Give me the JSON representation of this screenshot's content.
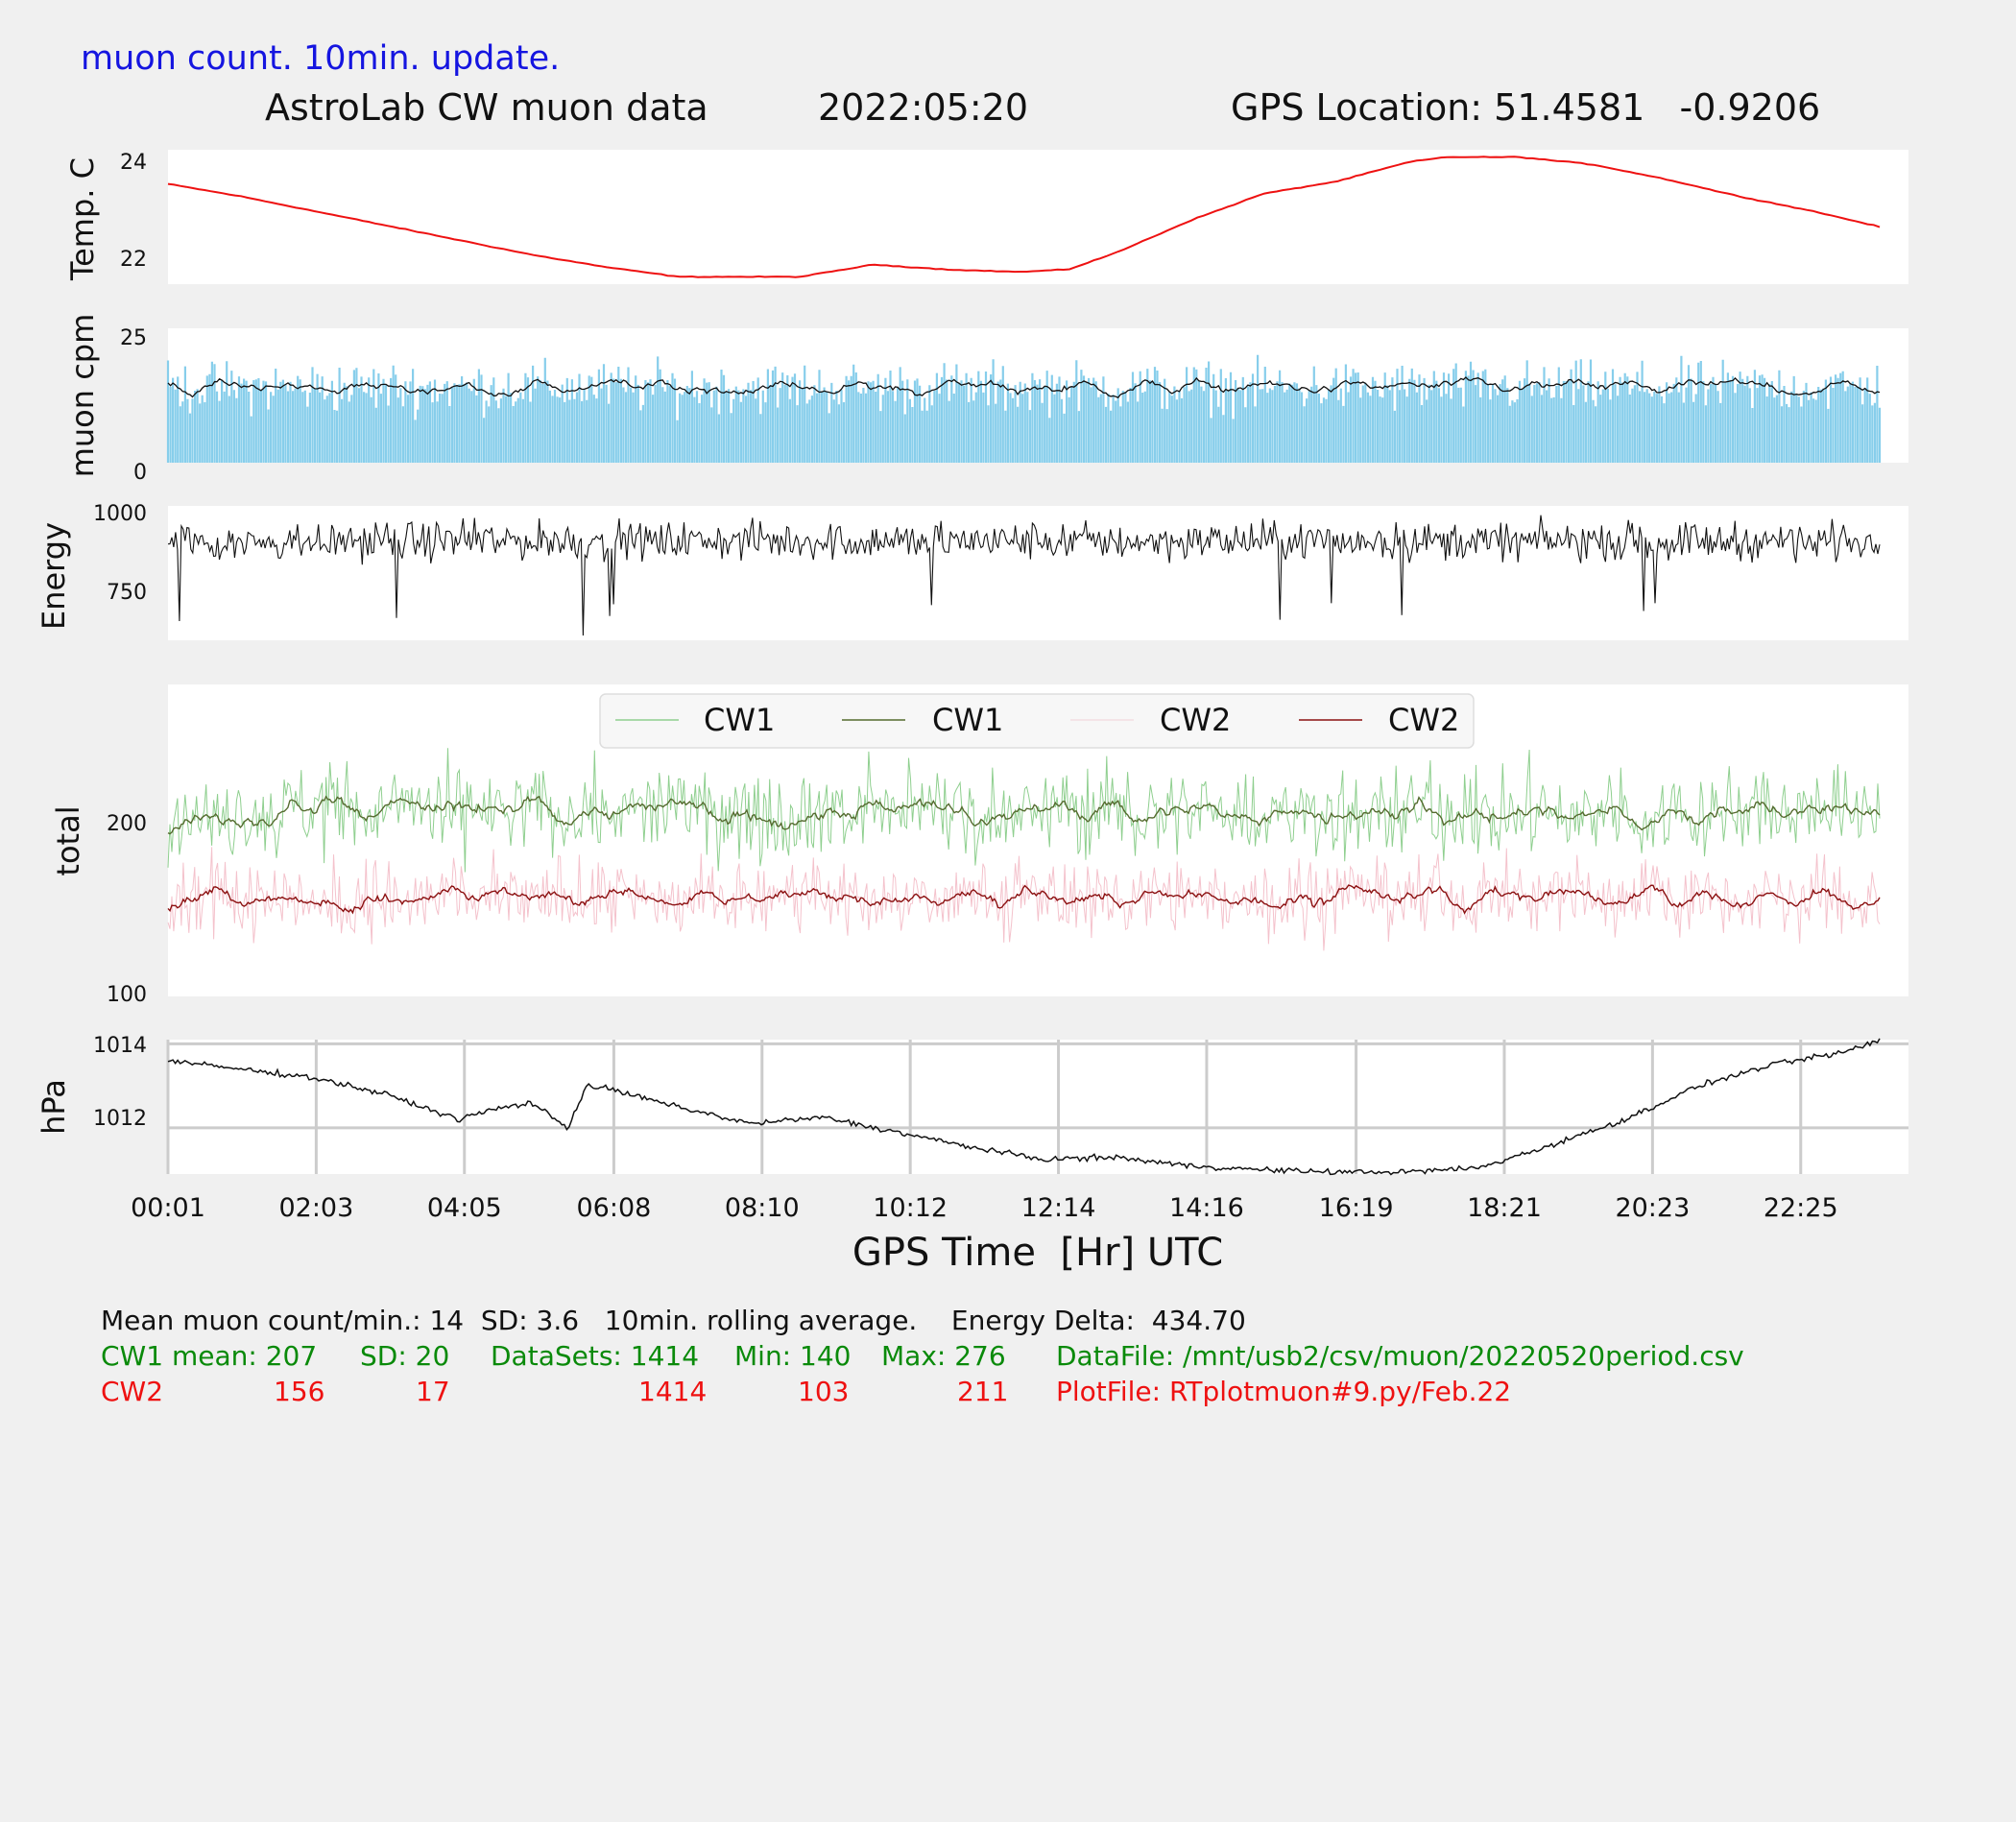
{
  "header": {
    "update_note": "muon count.  10min. update.",
    "title": "AstroLab CW muon data",
    "date": "2022:05:20",
    "gps_location": "GPS Location: 51.4581   -0.9206"
  },
  "colors": {
    "update_note": "#1515e0",
    "temp_line": "#ee1111",
    "muon_bars": "#87ceeb",
    "rolling_line": "#111111",
    "cw1_raw": "#8fcf8f",
    "cw1_avg": "#556b2f",
    "cw2_raw": "#f4c2cc",
    "cw2_avg": "#8b1010",
    "stats_black": "#111111",
    "stats_green": "#0a8a0a",
    "stats_red": "#ee1111"
  },
  "chart_data": [
    {
      "panel": "temperature",
      "type": "line",
      "ylabel": "Temp. C",
      "yticks": [
        "22",
        "24"
      ],
      "ylim": [
        21.45,
        24.2
      ],
      "x": [
        "00:01",
        "01:00",
        "02:00",
        "03:00",
        "04:00",
        "05:00",
        "06:00",
        "07:00",
        "08:00",
        "08:40",
        "09:40",
        "10:40",
        "11:40",
        "12:20",
        "13:00",
        "14:00",
        "15:00",
        "16:00",
        "17:00",
        "17:30",
        "18:30",
        "19:30",
        "20:30",
        "21:30",
        "22:30",
        "23:30"
      ],
      "values": [
        23.5,
        23.25,
        22.95,
        22.65,
        22.35,
        22.05,
        21.8,
        21.6,
        21.6,
        21.6,
        21.85,
        21.75,
        21.7,
        21.75,
        22.1,
        22.75,
        23.3,
        23.55,
        23.95,
        24.05,
        24.05,
        23.9,
        23.6,
        23.25,
        22.95,
        22.6
      ]
    },
    {
      "panel": "muon_cpm",
      "type": "bar",
      "ylabel": "muon cpm",
      "yticks": [
        "0",
        "25"
      ],
      "ylim": [
        0,
        25
      ],
      "series": [
        {
          "values_note": "per-minute counts",
          "mean": 14,
          "sd": 3.6,
          "max": 25
        },
        {
          "values_note": "10min. rolling average"
        }
      ]
    },
    {
      "panel": "energy",
      "type": "line",
      "ylabel": "Energy",
      "yticks": [
        "750",
        "1000"
      ],
      "ylim": [
        590,
        1010
      ],
      "min": 605,
      "max": 1000
    },
    {
      "panel": "total",
      "type": "line",
      "ylabel": "total",
      "yticks": [
        "100",
        "200"
      ],
      "ylim": [
        100,
        280
      ],
      "legend_position": "top-center",
      "series": [
        {
          "name": "CW1",
          "mean": 207,
          "sd": 20,
          "min": 140,
          "max": 276
        },
        {
          "name": "CW1",
          "mean": 207
        },
        {
          "name": "CW2",
          "mean": 156,
          "sd": 17,
          "min": 103,
          "max": 211
        },
        {
          "name": "CW2",
          "mean": 156
        }
      ]
    },
    {
      "panel": "pressure",
      "type": "line",
      "ylabel": "hPa",
      "yticks": [
        "1012",
        "1014"
      ],
      "ylim": [
        1010.9,
        1014.1
      ],
      "grid": true,
      "xlabel": "GPS Time  [Hr] UTC",
      "xticks": [
        "00:01",
        "02:03",
        "04:05",
        "06:08",
        "08:10",
        "10:12",
        "12:14",
        "14:16",
        "16:19",
        "18:21",
        "20:23",
        "22:25"
      ],
      "x": [
        "00:01",
        "01:00",
        "02:00",
        "03:00",
        "04:00",
        "04:30",
        "05:00",
        "05:30",
        "05:45",
        "06:00",
        "07:00",
        "08:00",
        "09:00",
        "10:00",
        "11:00",
        "12:00",
        "13:00",
        "14:00",
        "15:00",
        "16:00",
        "17:00",
        "18:00",
        "19:00",
        "20:00",
        "21:00",
        "22:00",
        "23:00",
        "23:30"
      ],
      "values": [
        1013.6,
        1013.4,
        1013.2,
        1012.8,
        1012.2,
        1012.45,
        1012.6,
        1012.0,
        1013.0,
        1012.95,
        1012.5,
        1012.1,
        1012.25,
        1011.9,
        1011.55,
        1011.25,
        1011.3,
        1011.1,
        1011.0,
        1010.95,
        1010.95,
        1011.05,
        1011.6,
        1012.2,
        1013.0,
        1013.5,
        1013.8,
        1014.1
      ]
    }
  ],
  "stats": {
    "line1": "Mean muon count/min.: 14  SD: 3.6   10min. rolling average.    Energy Delta:  434.70",
    "cw1": {
      "label": "CW1 mean: 207",
      "sd": "SD: 20",
      "datasets": "DataSets: 1414",
      "min": "Min: 140",
      "max": "Max: 276",
      "file": "DataFile: /mnt/usb2/csv/muon/20220520period.csv"
    },
    "cw2": {
      "label": "CW2",
      "mean": "156",
      "sd": "17",
      "datasets": "1414",
      "min": "103",
      "max": "211",
      "file": "PlotFile: RTplotmuon#9.py/Feb.22"
    }
  }
}
